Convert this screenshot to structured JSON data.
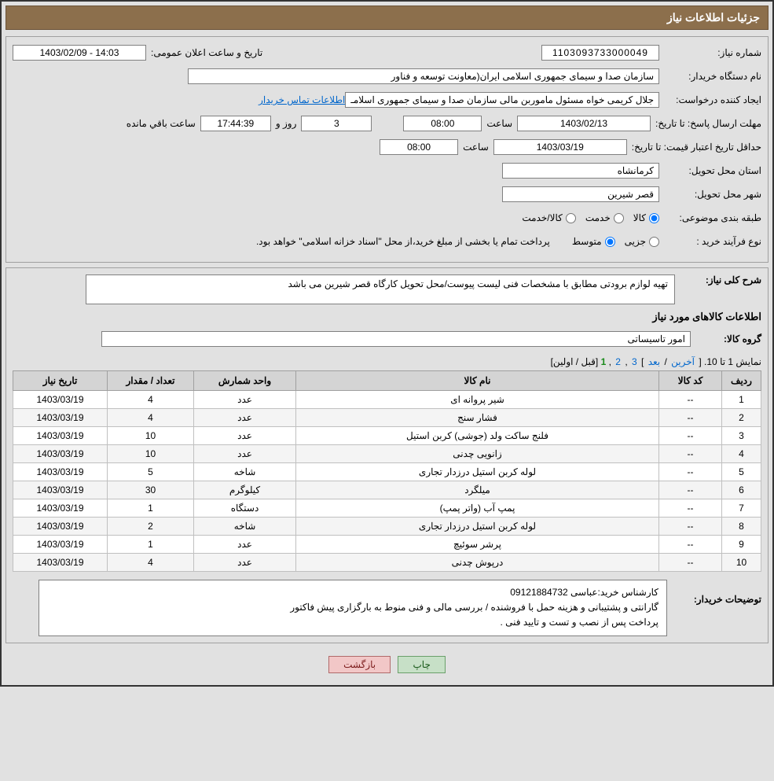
{
  "header": {
    "title": "جزئیات اطلاعات نیاز"
  },
  "fields": {
    "need_number_label": "شماره نیاز:",
    "need_number": "1103093733000049",
    "announce_datetime_label": "تاریخ و ساعت اعلان عمومی:",
    "announce_datetime": "14:03 - 1403/02/09",
    "buyer_org_label": "نام دستگاه خریدار:",
    "buyer_org": "سازمان صدا و سیمای جمهوری اسلامی ایران(معاونت توسعه و فناور",
    "request_creator_label": "ایجاد کننده درخواست:",
    "request_creator": "جلال کریمی خواه مسئول ماموربن مالی سازمان صدا و سیمای جمهوری اسلامـ",
    "buyer_contact_link": "اطلاعات تماس خریدار",
    "response_deadline_label": "مهلت ارسال پاسخ:",
    "to_date_label": "تا تاریخ:",
    "response_date": "1403/02/13",
    "time_label": "ساعت",
    "response_time": "08:00",
    "days_left": "3",
    "day_and_label": "روز و",
    "hms_left": "17:44:39",
    "remaining_label": "ساعت باقي مانده",
    "min_price_validity_label": "حداقل تاریخ اعتبار قیمت:",
    "min_price_date": "1403/03/19",
    "min_price_time": "08:00",
    "delivery_province_label": "استان محل تحویل:",
    "delivery_province": "کرمانشاه",
    "delivery_city_label": "شهر محل تحویل:",
    "delivery_city": "قصر شیرین",
    "subject_class_label": "طبقه بندی موضوعی:",
    "radio_goods": "کالا",
    "radio_service": "خدمت",
    "radio_goods_service": "کالا/خدمت",
    "purchase_type_label": "نوع فرآیند خرید :",
    "radio_partial": "جزیی",
    "radio_medium": "متوسط",
    "purchase_note": "پرداخت تمام یا بخشی از مبلغ خرید،از محل \"اسناد خزانه اسلامی\" خواهد بود."
  },
  "detail": {
    "overview_label": "شرح کلی نیاز:",
    "overview_text": "تهیه لوازم برودتی مطابق با مشخصات فنی لیست پیوست/محل تحویل کارگاه قصر شیرین می باشد",
    "goods_info_title": "اطلاعات کالاهای مورد نیاز",
    "goods_group_label": "گروه کالا:",
    "goods_group": "امور تاسیساتی",
    "pagination_text": "نمایش 1 تا 10.",
    "pagination_last": "آخرین",
    "pagination_next": "بعد",
    "pagination_links": [
      "3",
      "2"
    ],
    "pagination_current": "1",
    "pagination_prev_first": "[قبل / اولین]",
    "table": {
      "headers": [
        "ردیف",
        "کد کالا",
        "نام کالا",
        "واحد شمارش",
        "تعداد / مقدار",
        "تاریخ نیاز"
      ],
      "rows": [
        [
          "1",
          "--",
          "شیر پروانه ای",
          "عدد",
          "4",
          "1403/03/19"
        ],
        [
          "2",
          "--",
          "فشار سنج",
          "عدد",
          "4",
          "1403/03/19"
        ],
        [
          "3",
          "--",
          "فلنج ساکت ولد (جوشی) کربن استیل",
          "عدد",
          "10",
          "1403/03/19"
        ],
        [
          "4",
          "--",
          "زانویی چدنی",
          "عدد",
          "10",
          "1403/03/19"
        ],
        [
          "5",
          "--",
          "لوله کربن استیل درزدار تجاری",
          "شاخه",
          "5",
          "1403/03/19"
        ],
        [
          "6",
          "--",
          "میلگرد",
          "کیلوگرم",
          "30",
          "1403/03/19"
        ],
        [
          "7",
          "--",
          "پمپ آب (واتر پمپ)",
          "دستگاه",
          "1",
          "1403/03/19"
        ],
        [
          "8",
          "--",
          "لوله کربن استیل درزدار تجاری",
          "شاخه",
          "2",
          "1403/03/19"
        ],
        [
          "9",
          "--",
          "پرشر سوئیچ",
          "عدد",
          "1",
          "1403/03/19"
        ],
        [
          "10",
          "--",
          "درپوش چدنی",
          "عدد",
          "4",
          "1403/03/19"
        ]
      ]
    },
    "buyer_notes_label": "توضیحات خریدار:",
    "buyer_notes_line1": "کارشناس خرید:عباسی 09121884732",
    "buyer_notes_line2": "گارانتی و پشتیبانی و هزینه حمل با فروشنده / بررسی مالی و فنی منوط به بارگزاری پیش فاکتور",
    "buyer_notes_line3": "پرداخت پس از نصب و تست و تایید فنی ."
  },
  "buttons": {
    "print": "چاپ",
    "back": "بازگشت"
  }
}
